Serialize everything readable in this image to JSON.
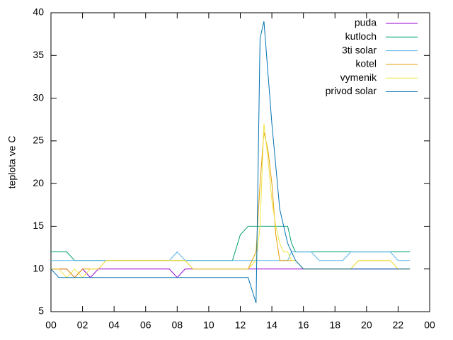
{
  "chart_data": {
    "type": "line",
    "y_label": "teplota ve C",
    "x": [
      0,
      0.5,
      1,
      1.5,
      2,
      2.5,
      3,
      3.5,
      4,
      4.5,
      5,
      5.5,
      6,
      6.5,
      7,
      7.5,
      8,
      8.5,
      9,
      9.5,
      10,
      10.5,
      11,
      11.5,
      12,
      12.5,
      13,
      13.25,
      13.5,
      13.75,
      14,
      14.25,
      14.5,
      14.75,
      15,
      15.25,
      15.5,
      16,
      16.5,
      17,
      17.5,
      18,
      18.5,
      19,
      19.5,
      20,
      20.5,
      21,
      21.5,
      22,
      22.5,
      22.75
    ],
    "series": [
      {
        "name": "puda",
        "color": "#9400d3",
        "values": [
          10,
          10,
          10,
          9,
          10,
          9,
          10,
          10,
          10,
          10,
          10,
          10,
          10,
          10,
          10,
          10,
          9,
          10,
          10,
          10,
          10,
          10,
          10,
          10,
          10,
          10,
          10,
          10,
          10,
          10,
          10,
          10,
          10,
          10,
          10,
          10,
          10,
          10,
          10,
          10,
          10,
          10,
          10,
          10,
          10,
          10,
          10,
          10,
          10,
          10,
          10,
          10
        ]
      },
      {
        "name": "kutloch",
        "color": "#009e73",
        "values": [
          12,
          12,
          12,
          11,
          11,
          11,
          11,
          11,
          11,
          11,
          11,
          11,
          11,
          11,
          11,
          11,
          11,
          11,
          11,
          11,
          11,
          11,
          11,
          11,
          14,
          15,
          15,
          15,
          15,
          15,
          15,
          15,
          15,
          15,
          15,
          13,
          12,
          12,
          12,
          12,
          12,
          12,
          12,
          12,
          12,
          12,
          12,
          12,
          12,
          12,
          12,
          12
        ]
      },
      {
        "name": "3ti solar",
        "color": "#56b4e9",
        "values": [
          11,
          11,
          11,
          11,
          11,
          11,
          11,
          11,
          11,
          11,
          11,
          11,
          11,
          11,
          11,
          11,
          12,
          11,
          11,
          11,
          11,
          11,
          11,
          11,
          11,
          11,
          11,
          11,
          11,
          11,
          11,
          11,
          11,
          11,
          11,
          12,
          12,
          12,
          12,
          11,
          11,
          11,
          11,
          12,
          12,
          12,
          12,
          12,
          12,
          11,
          11,
          11
        ]
      },
      {
        "name": "kotel",
        "color": "#e69f00",
        "values": [
          10,
          10,
          10,
          9,
          10,
          10,
          10,
          11,
          11,
          11,
          11,
          11,
          11,
          11,
          11,
          11,
          11,
          11,
          10,
          10,
          10,
          10,
          10,
          10,
          10,
          10,
          12,
          20,
          26,
          24,
          20,
          14,
          11,
          11,
          11,
          11,
          11,
          10,
          10,
          10,
          10,
          10,
          10,
          10,
          11,
          11,
          11,
          11,
          11,
          10,
          10,
          10
        ]
      },
      {
        "name": "vymenik",
        "color": "#f0e442",
        "values": [
          10,
          10,
          9,
          10,
          9,
          10,
          10,
          11,
          11,
          11,
          11,
          11,
          11,
          11,
          11,
          11,
          11,
          11,
          10,
          10,
          10,
          10,
          10,
          10,
          10,
          10,
          11,
          15,
          27,
          23,
          18,
          15,
          13,
          12,
          12,
          11,
          11,
          10,
          10,
          10,
          10,
          10,
          10,
          10,
          11,
          11,
          11,
          11,
          11,
          10,
          10,
          10
        ]
      },
      {
        "name": "privod solar",
        "color": "#0072b2",
        "values": [
          10,
          9,
          9,
          9,
          9,
          9,
          9,
          9,
          9,
          9,
          9,
          9,
          9,
          9,
          9,
          9,
          9,
          9,
          9,
          9,
          9,
          9,
          9,
          9,
          9,
          9,
          6,
          37,
          39,
          33,
          27,
          22,
          17,
          15,
          13,
          12,
          11,
          10,
          10,
          10,
          10,
          10,
          10,
          10,
          10,
          10,
          10,
          10,
          10,
          10,
          10,
          10
        ]
      }
    ],
    "xlim": [
      0,
      24
    ],
    "ylim": [
      5,
      40
    ],
    "xticks": [
      {
        "value": 0,
        "label": "00"
      },
      {
        "value": 2,
        "label": "02"
      },
      {
        "value": 4,
        "label": "04"
      },
      {
        "value": 6,
        "label": "06"
      },
      {
        "value": 8,
        "label": "08"
      },
      10,
      12,
      14,
      16,
      18,
      20,
      22,
      {
        "value": 24,
        "label": "00"
      }
    ],
    "yticks": [
      5,
      10,
      15,
      20,
      25,
      30,
      35,
      40
    ],
    "grid": false,
    "legend": "top-right"
  }
}
